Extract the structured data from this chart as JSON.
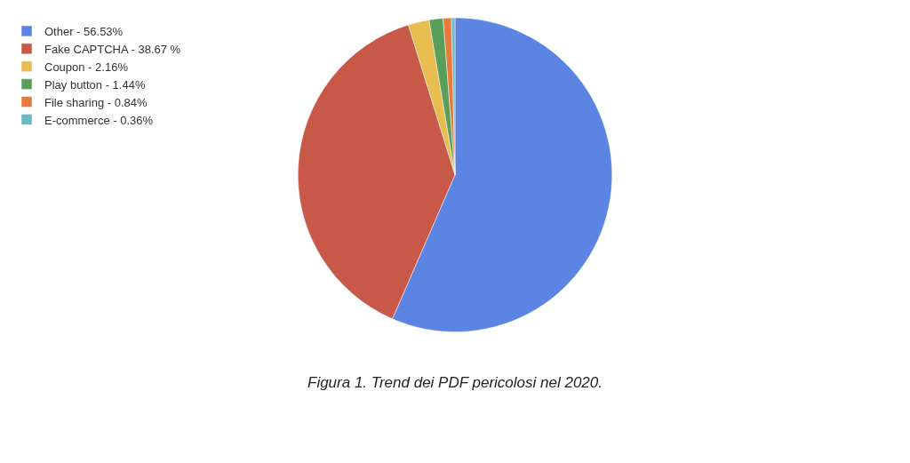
{
  "chart_data": {
    "type": "pie",
    "categories": [
      "Other - 56.53%",
      "Fake CAPTCHA - 38.67 %",
      "Coupon - 2.16%",
      "Play button - 1.44%",
      "File sharing - 0.84%",
      "E-commerce - 0.36%"
    ],
    "values": [
      56.53,
      38.67,
      2.16,
      1.44,
      0.84,
      0.36
    ],
    "colors": [
      "#5b84e3",
      "#c85848",
      "#e8bd50",
      "#5a9e5a",
      "#e57a3a",
      "#6ab8c8"
    ],
    "legend": "top left",
    "annotations": [
      "Figura 1. Trend dei PDF pericolosi nel 2020."
    ]
  }
}
